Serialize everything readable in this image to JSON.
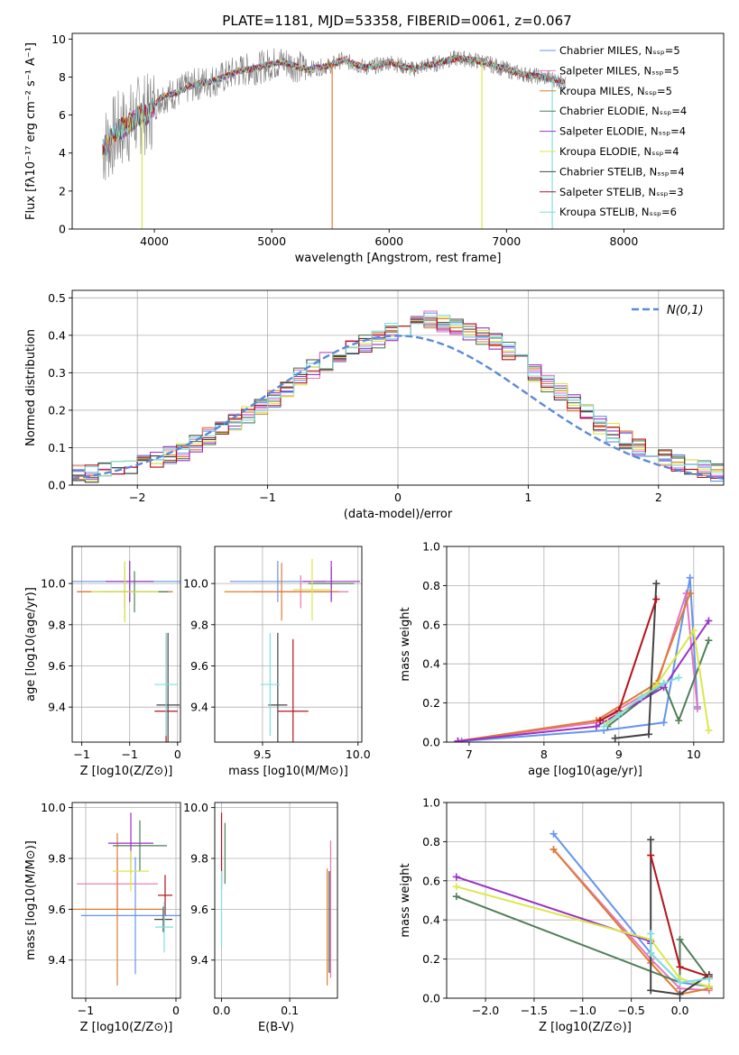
{
  "chart_data": [
    {
      "type": "line",
      "title": "PLATE=1181, MJD=53358, FIBERID=0061, z=0.067",
      "xlabel": "wavelength [Angstrom, rest frame]",
      "ylabel": "Flux [fλ10⁻¹⁷ erg cm⁻² s⁻¹ A⁻¹]",
      "xlim": [
        3300,
        8850
      ],
      "ylim": [
        0,
        10.3
      ],
      "xticks": [
        4000,
        5000,
        6000,
        7000,
        8000
      ],
      "yticks": [
        0,
        2,
        4,
        6,
        8,
        10
      ],
      "legend_position": "right",
      "grid": false,
      "spectrum_x": [
        3560,
        3600,
        3650,
        3700,
        3750,
        3800,
        3850,
        3900,
        3950,
        4000,
        4050,
        4100,
        4200,
        4300,
        4400,
        4500,
        4600,
        4700,
        4800,
        4900,
        5000,
        5100,
        5200,
        5300,
        5400,
        5500,
        5600,
        5700,
        5800,
        5900,
        6000,
        6100,
        6200,
        6300,
        6400,
        6500,
        6600,
        6700,
        6800,
        6900,
        7000,
        7100,
        7200,
        7300,
        7400,
        7500
      ],
      "spectrum_y": [
        4.3,
        4.5,
        4.9,
        5.2,
        5.4,
        5.6,
        5.9,
        6.1,
        6.0,
        6.5,
        6.9,
        7.0,
        7.2,
        7.5,
        7.7,
        7.8,
        8.0,
        8.3,
        8.4,
        8.5,
        8.7,
        8.8,
        8.6,
        8.4,
        8.5,
        8.6,
        8.9,
        8.7,
        8.5,
        8.6,
        8.8,
        8.6,
        8.4,
        8.6,
        8.7,
        8.9,
        9.0,
        8.9,
        8.8,
        8.6,
        8.4,
        8.2,
        8.1,
        8.0,
        7.9,
        7.7
      ],
      "series": [
        {
          "name": "Chabrier MILES, N_SSP=5",
          "color": "#6495ed"
        },
        {
          "name": "Salpeter MILES, N_SSP=5",
          "color": "#e377c2"
        },
        {
          "name": "Kroupa MILES, N_SSP=5",
          "color": "#e07b2f"
        },
        {
          "name": "Chabrier ELODIE, N_SSP=4",
          "color": "#4f7f57"
        },
        {
          "name": "Salpeter ELODIE, N_SSP=4",
          "color": "#9b30c8"
        },
        {
          "name": "Kroupa ELODIE, N_SSP=4",
          "color": "#d9e84a"
        },
        {
          "name": "Chabrier STELIB, N_SSP=4",
          "color": "#444444"
        },
        {
          "name": "Salpeter STELIB, N_SSP=3",
          "color": "#b5121b"
        },
        {
          "name": "Kroupa STELIB, N_SSP=6",
          "color": "#7fdfe0"
        }
      ]
    },
    {
      "type": "bar",
      "xlabel": "(data-model)/error",
      "ylabel": "Normed distribution",
      "xlim": [
        -2.5,
        2.5
      ],
      "ylim": [
        0,
        0.52
      ],
      "xticks": [
        -2,
        -1,
        0,
        1,
        2
      ],
      "yticks": [
        0.0,
        0.1,
        0.2,
        0.3,
        0.4,
        0.5
      ],
      "grid": true,
      "legend_position": "top-right",
      "reference_curve": "N(0,1)",
      "bin_width": 0.1,
      "hist_values": [
        0.03,
        0.03,
        0.04,
        0.045,
        0.05,
        0.06,
        0.07,
        0.08,
        0.09,
        0.11,
        0.13,
        0.15,
        0.17,
        0.19,
        0.21,
        0.23,
        0.26,
        0.29,
        0.31,
        0.33,
        0.35,
        0.37,
        0.38,
        0.39,
        0.41,
        0.42,
        0.43,
        0.44,
        0.43,
        0.42,
        0.41,
        0.4,
        0.38,
        0.36,
        0.34,
        0.3,
        0.27,
        0.25,
        0.22,
        0.19,
        0.16,
        0.14,
        0.12,
        0.1,
        0.085,
        0.07,
        0.06,
        0.05,
        0.04,
        0.035
      ]
    },
    {
      "type": "scatter",
      "xlabel": "Z [log10(Z/Z⊙)]",
      "ylabel": "age  [log10(age/yr)]",
      "xlim": [
        -1.1,
        0.03
      ],
      "ylim": [
        9.23,
        10.18
      ],
      "xticks": [
        -1,
        -0.5,
        0
      ],
      "yticks": [
        9.4,
        9.6,
        9.8,
        10.0
      ],
      "grid": true,
      "points": [
        {
          "x": -0.5,
          "y": 10.01,
          "xerr": 0.6,
          "yerr": 0.1,
          "color": "#6495ed"
        },
        {
          "x": -0.55,
          "y": 9.96,
          "xerr": 0.5,
          "yerr": 0.08,
          "color": "#e077b0"
        },
        {
          "x": -0.55,
          "y": 9.96,
          "xerr": 0.5,
          "yerr": 0.14,
          "color": "#e07b2f"
        },
        {
          "x": -0.45,
          "y": 9.96,
          "xerr": 0.35,
          "yerr": 0.1,
          "color": "#4f7f57"
        },
        {
          "x": -0.5,
          "y": 10.01,
          "xerr": 0.25,
          "yerr": 0.1,
          "color": "#9b30c8"
        },
        {
          "x": -0.55,
          "y": 9.96,
          "xerr": 0.35,
          "yerr": 0.15,
          "color": "#d9e84a"
        },
        {
          "x": -0.1,
          "y": 9.41,
          "xerr": 0.12,
          "yerr": 0.35,
          "color": "#444444"
        },
        {
          "x": -0.12,
          "y": 9.38,
          "xerr": 0.12,
          "yerr": 0.38,
          "color": "#b5121b"
        },
        {
          "x": -0.12,
          "y": 9.51,
          "xerr": 0.12,
          "yerr": 0.25,
          "color": "#7fdfe0"
        }
      ]
    },
    {
      "type": "scatter",
      "xlabel": "mass [log10(M/M⊙)]",
      "ylabel": "",
      "xlim": [
        9.25,
        10.02
      ],
      "ylim": [
        9.23,
        10.18
      ],
      "xticks": [
        9.5,
        10.0
      ],
      "yticks": [
        9.4,
        9.6,
        9.8,
        10.0
      ],
      "grid": true,
      "points": [
        {
          "x": 9.58,
          "y": 10.01,
          "xerr": 0.25,
          "yerr": 0.1,
          "color": "#6495ed"
        },
        {
          "x": 9.7,
          "y": 9.96,
          "xerr": 0.25,
          "yerr": 0.08,
          "color": "#e077b0"
        },
        {
          "x": 9.6,
          "y": 9.96,
          "xerr": 0.3,
          "yerr": 0.14,
          "color": "#e07b2f"
        },
        {
          "x": 9.86,
          "y": 10.0,
          "xerr": 0.12,
          "yerr": 0.08,
          "color": "#4f7f57"
        },
        {
          "x": 9.86,
          "y": 10.01,
          "xerr": 0.15,
          "yerr": 0.1,
          "color": "#9b30c8"
        },
        {
          "x": 9.76,
          "y": 9.97,
          "xerr": 0.1,
          "yerr": 0.15,
          "color": "#d9e84a"
        },
        {
          "x": 9.58,
          "y": 9.41,
          "xerr": 0.05,
          "yerr": 0.35,
          "color": "#444444"
        },
        {
          "x": 9.66,
          "y": 9.38,
          "xerr": 0.08,
          "yerr": 0.35,
          "color": "#b5121b"
        },
        {
          "x": 9.54,
          "y": 9.51,
          "xerr": 0.05,
          "yerr": 0.25,
          "color": "#7fdfe0"
        }
      ]
    },
    {
      "type": "line",
      "xlabel": "age  [log10(age/yr)]",
      "ylabel": "mass weight",
      "xlim": [
        6.7,
        10.4
      ],
      "ylim": [
        0,
        1
      ],
      "xticks": [
        7,
        8,
        9,
        10
      ],
      "yticks": [
        0.0,
        0.2,
        0.4,
        0.6,
        0.8,
        1.0
      ],
      "grid": true,
      "series": [
        {
          "name": "Chabrier MILES",
          "color": "#6495ed",
          "x": [
            6.9,
            8.8,
            9.6,
            9.95,
            10.05
          ],
          "y": [
            0.005,
            0.06,
            0.1,
            0.84,
            0.18
          ]
        },
        {
          "name": "Salpeter MILES",
          "color": "#e377c2",
          "x": [
            6.85,
            8.7,
            9.5,
            9.9,
            10.05
          ],
          "y": [
            0.005,
            0.1,
            0.28,
            0.76,
            0.17
          ]
        },
        {
          "name": "Kroupa MILES",
          "color": "#e07b2f",
          "x": [
            6.85,
            8.7,
            9.5,
            9.95
          ],
          "y": [
            0.005,
            0.11,
            0.3,
            0.76
          ]
        },
        {
          "name": "Chabrier ELODIE",
          "color": "#4f7f57",
          "x": [
            8.85,
            9.6,
            9.8,
            10.2
          ],
          "y": [
            0.08,
            0.3,
            0.11,
            0.52
          ]
        },
        {
          "name": "Salpeter ELODIE",
          "color": "#9b30c8",
          "x": [
            6.85,
            8.7,
            9.6,
            10.2
          ],
          "y": [
            0.005,
            0.08,
            0.28,
            0.62
          ]
        },
        {
          "name": "Kroupa ELODIE",
          "color": "#d9e84a",
          "x": [
            8.85,
            9.5,
            10.0,
            10.2
          ],
          "y": [
            0.1,
            0.29,
            0.57,
            0.06
          ]
        },
        {
          "name": "Chabrier STELIB",
          "color": "#444444",
          "x": [
            8.95,
            9.4,
            9.5
          ],
          "y": [
            0.02,
            0.04,
            0.81
          ]
        },
        {
          "name": "Salpeter STELIB",
          "color": "#b5121b",
          "x": [
            8.75,
            9.0,
            9.5
          ],
          "y": [
            0.11,
            0.16,
            0.73
          ]
        },
        {
          "name": "Kroupa STELIB",
          "color": "#7fdfe0",
          "x": [
            8.8,
            9.0,
            9.3,
            9.6,
            9.8
          ],
          "y": [
            0.08,
            0.14,
            0.23,
            0.3,
            0.33
          ]
        }
      ]
    },
    {
      "type": "scatter",
      "xlabel": "Z [log10(Z/Z⊙)]",
      "ylabel": "mass [log10(M/M⊙)]",
      "xlim": [
        -1.15,
        0.05
      ],
      "ylim": [
        9.25,
        10.02
      ],
      "xticks": [
        -1,
        0
      ],
      "yticks": [
        9.4,
        9.6,
        9.8,
        10.0
      ],
      "grid": true,
      "points": [
        {
          "x": -0.45,
          "y": 9.575,
          "xerr": 0.6,
          "yerr": 0.23,
          "color": "#6495ed"
        },
        {
          "x": -0.65,
          "y": 9.7,
          "xerr": 0.45,
          "yerr": 0.1,
          "color": "#e077b0"
        },
        {
          "x": -0.65,
          "y": 9.6,
          "xerr": 0.5,
          "yerr": 0.3,
          "color": "#e07b2f"
        },
        {
          "x": -0.4,
          "y": 9.85,
          "xerr": 0.3,
          "yerr": 0.1,
          "color": "#4f7f57"
        },
        {
          "x": -0.5,
          "y": 9.86,
          "xerr": 0.25,
          "yerr": 0.12,
          "color": "#9b30c8"
        },
        {
          "x": -0.5,
          "y": 9.75,
          "xerr": 0.2,
          "yerr": 0.08,
          "color": "#d9e84a"
        },
        {
          "x": -0.14,
          "y": 9.56,
          "xerr": 0.1,
          "yerr": 0.05,
          "color": "#444444"
        },
        {
          "x": -0.12,
          "y": 9.655,
          "xerr": 0.08,
          "yerr": 0.08,
          "color": "#b5121b"
        },
        {
          "x": -0.13,
          "y": 9.53,
          "xerr": 0.1,
          "yerr": 0.1,
          "color": "#7fdfe0"
        }
      ]
    },
    {
      "type": "scatter",
      "xlabel": "E(B-V)",
      "ylabel": "",
      "xlim": [
        -0.01,
        0.17
      ],
      "ylim": [
        9.25,
        10.02
      ],
      "xticks": [
        0.0,
        0.1
      ],
      "yticks": [
        9.4,
        9.6,
        9.8,
        10.0
      ],
      "grid": true,
      "points": [
        {
          "x": 0.0,
          "y": 9.83,
          "yerr": 0.15,
          "color": "#b5121b"
        },
        {
          "x": 0.005,
          "y": 9.82,
          "yerr": 0.12,
          "color": "#4f7f57"
        },
        {
          "x": 0.0,
          "y": 9.6,
          "yerr": 0.15,
          "color": "#7fdfe0"
        },
        {
          "x": 0.155,
          "y": 9.53,
          "yerr": 0.23,
          "color": "#e07b2f"
        },
        {
          "x": 0.16,
          "y": 9.6,
          "yerr": 0.27,
          "color": "#e077b0"
        },
        {
          "x": 0.158,
          "y": 9.55,
          "yerr": 0.2,
          "color": "#444444"
        }
      ]
    },
    {
      "type": "line",
      "xlabel": "Z [log10(Z/Z⊙)]",
      "ylabel": "mass weight",
      "xlim": [
        -2.4,
        0.45
      ],
      "ylim": [
        0,
        1
      ],
      "xticks": [
        -2.0,
        -1.5,
        -1.0,
        -0.5,
        0.0
      ],
      "yticks": [
        0.0,
        0.2,
        0.4,
        0.6,
        0.8,
        1.0
      ],
      "grid": true,
      "series": [
        {
          "name": "Chabrier MILES",
          "color": "#6495ed",
          "x": [
            -1.3,
            -0.3,
            0.0,
            0.3
          ],
          "y": [
            0.84,
            0.23,
            0.08,
            0.06
          ]
        },
        {
          "name": "Salpeter MILES",
          "color": "#e377c2",
          "x": [
            -1.3,
            -0.3,
            0.0,
            0.3
          ],
          "y": [
            0.76,
            0.2,
            0.05,
            0.04
          ]
        },
        {
          "name": "Kroupa MILES",
          "color": "#e07b2f",
          "x": [
            -1.3,
            -0.3,
            0.0,
            0.3
          ],
          "y": [
            0.76,
            0.18,
            0.02,
            0.05
          ]
        },
        {
          "name": "Chabrier ELODIE",
          "color": "#4f7f57",
          "x": [
            -2.3,
            0.0,
            0.0,
            0.3
          ],
          "y": [
            0.52,
            0.08,
            0.3,
            0.1
          ]
        },
        {
          "name": "Salpeter ELODIE",
          "color": "#9b30c8",
          "x": [
            -2.3,
            -0.3,
            -0.3
          ],
          "y": [
            0.62,
            0.29,
            0.28
          ]
        },
        {
          "name": "Kroupa ELODIE",
          "color": "#d9e84a",
          "x": [
            -2.3,
            -0.3,
            0.0,
            0.3
          ],
          "y": [
            0.57,
            0.3,
            0.1,
            0.06
          ]
        },
        {
          "name": "Chabrier STELIB",
          "color": "#444444",
          "x": [
            -0.3,
            -0.3,
            0.0,
            0.3
          ],
          "y": [
            0.81,
            0.04,
            0.02,
            0.12
          ]
        },
        {
          "name": "Salpeter STELIB",
          "color": "#b5121b",
          "x": [
            -0.3,
            0.0,
            0.3
          ],
          "y": [
            0.73,
            0.16,
            0.11
          ]
        },
        {
          "name": "Kroupa STELIB",
          "color": "#7fdfe0",
          "x": [
            -0.3,
            -0.3,
            0.0,
            0.3
          ],
          "y": [
            0.33,
            0.23,
            0.08,
            0.1
          ]
        }
      ]
    }
  ],
  "legend_ref_label": "N(0,1)"
}
